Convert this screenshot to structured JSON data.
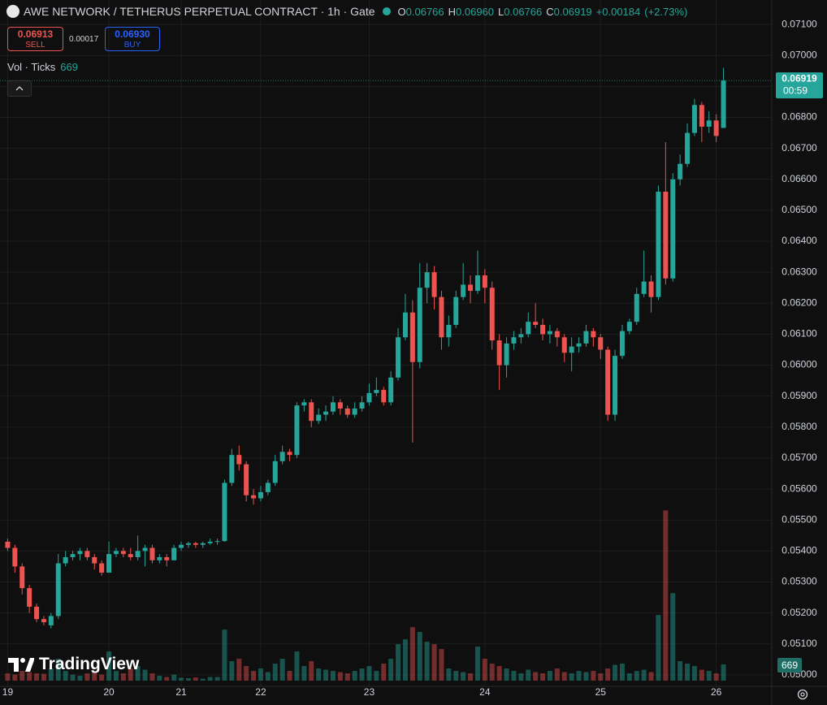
{
  "header": {
    "title": "AWE NETWORK / TETHERUS PERPETUAL CONTRACT · 1h · Gate",
    "o_label": "O",
    "open": "0.06766",
    "h_label": "H",
    "high": "0.06960",
    "l_label": "L",
    "low": "0.06766",
    "c_label": "C",
    "close": "0.06919",
    "change": "+0.00184",
    "change_pct": "(+2.73%)"
  },
  "trade": {
    "sell_price": "0.06913",
    "sell_label": "SELL",
    "spread": "0.00017",
    "buy_price": "0.06930",
    "buy_label": "BUY"
  },
  "indicator": {
    "label": "Vol · Ticks"
  },
  "countdown": "00:59",
  "branding": "TradingView",
  "chart_data": {
    "type": "candlestick",
    "categories": [
      "19",
      null,
      null,
      null,
      null,
      null,
      null,
      null,
      null,
      null,
      null,
      null,
      null,
      null,
      "20",
      null,
      null,
      null,
      null,
      null,
      null,
      null,
      null,
      null,
      "21",
      null,
      null,
      null,
      null,
      null,
      null,
      null,
      null,
      null,
      null,
      "22",
      null,
      null,
      null,
      null,
      null,
      null,
      null,
      null,
      null,
      null,
      null,
      null,
      null,
      null,
      "23",
      null,
      null,
      null,
      null,
      null,
      null,
      null,
      null,
      null,
      null,
      null,
      null,
      null,
      null,
      null,
      "24",
      null,
      null,
      null,
      null,
      null,
      null,
      null,
      null,
      null,
      null,
      null,
      null,
      null,
      null,
      null,
      "25",
      null,
      null,
      null,
      null,
      null,
      null,
      null,
      null,
      null,
      null,
      null,
      null,
      null,
      null,
      null,
      "26",
      null
    ],
    "ohlc": [
      [
        0.0543,
        0.0544,
        0.054,
        0.0541
      ],
      [
        0.0541,
        0.0542,
        0.0533,
        0.0535
      ],
      [
        0.0535,
        0.0536,
        0.0526,
        0.0528
      ],
      [
        0.0528,
        0.0529,
        0.052,
        0.0522
      ],
      [
        0.0522,
        0.0523,
        0.0517,
        0.0518
      ],
      [
        0.0518,
        0.0519,
        0.0516,
        0.0517
      ],
      [
        0.0516,
        0.052,
        0.0515,
        0.0519
      ],
      [
        0.0519,
        0.0539,
        0.0518,
        0.0536
      ],
      [
        0.0536,
        0.054,
        0.0535,
        0.0538
      ],
      [
        0.0538,
        0.054,
        0.0537,
        0.0539
      ],
      [
        0.0539,
        0.0541,
        0.0537,
        0.054
      ],
      [
        0.054,
        0.0541,
        0.0537,
        0.0538
      ],
      [
        0.0538,
        0.0539,
        0.0534,
        0.0536
      ],
      [
        0.0536,
        0.0537,
        0.0532,
        0.0533
      ],
      [
        0.0533,
        0.0543,
        0.0533,
        0.0539
      ],
      [
        0.0539,
        0.0541,
        0.0538,
        0.054
      ],
      [
        0.054,
        0.0541,
        0.0538,
        0.0539
      ],
      [
        0.0539,
        0.0541,
        0.0537,
        0.0538
      ],
      [
        0.0538,
        0.0545,
        0.0537,
        0.054
      ],
      [
        0.054,
        0.0542,
        0.0535,
        0.0541
      ],
      [
        0.0541,
        0.0542,
        0.0536,
        0.0537
      ],
      [
        0.0537,
        0.0539,
        0.0536,
        0.0538
      ],
      [
        0.0538,
        0.0539,
        0.0535,
        0.0537
      ],
      [
        0.0537,
        0.0542,
        0.0537,
        0.0541
      ],
      [
        0.0541,
        0.0543,
        0.054,
        0.0542
      ],
      [
        0.0542,
        0.0543,
        0.0541,
        0.05425
      ],
      [
        0.05425,
        0.0543,
        0.0541,
        0.0542
      ],
      [
        0.0542,
        0.0543,
        0.0541,
        0.05425
      ],
      [
        0.05425,
        0.0544,
        0.0542,
        0.0543
      ],
      [
        0.0543,
        0.0544,
        0.0542,
        0.05432
      ],
      [
        0.05432,
        0.0563,
        0.0543,
        0.0562
      ],
      [
        0.0562,
        0.0573,
        0.0561,
        0.0571
      ],
      [
        0.0571,
        0.0574,
        0.0566,
        0.0568
      ],
      [
        0.0568,
        0.0569,
        0.0556,
        0.0558
      ],
      [
        0.0558,
        0.056,
        0.0555,
        0.0557
      ],
      [
        0.0557,
        0.0561,
        0.0556,
        0.0559
      ],
      [
        0.0559,
        0.0563,
        0.0558,
        0.0562
      ],
      [
        0.0562,
        0.0571,
        0.0561,
        0.0569
      ],
      [
        0.0569,
        0.0574,
        0.0568,
        0.0572
      ],
      [
        0.0572,
        0.0573,
        0.0569,
        0.0571
      ],
      [
        0.0571,
        0.0588,
        0.057,
        0.0587
      ],
      [
        0.0587,
        0.0589,
        0.0585,
        0.0588
      ],
      [
        0.0588,
        0.0589,
        0.058,
        0.0582
      ],
      [
        0.0582,
        0.0586,
        0.0581,
        0.0584
      ],
      [
        0.0584,
        0.0587,
        0.0582,
        0.0585
      ],
      [
        0.0585,
        0.059,
        0.0584,
        0.0588
      ],
      [
        0.0588,
        0.0589,
        0.0584,
        0.0586
      ],
      [
        0.0586,
        0.0587,
        0.0583,
        0.0584
      ],
      [
        0.0584,
        0.0588,
        0.0583,
        0.0586
      ],
      [
        0.0586,
        0.059,
        0.0585,
        0.0588
      ],
      [
        0.0588,
        0.0594,
        0.0587,
        0.0591
      ],
      [
        0.0591,
        0.0596,
        0.059,
        0.0592
      ],
      [
        0.0592,
        0.0593,
        0.0587,
        0.0588
      ],
      [
        0.0588,
        0.0598,
        0.0587,
        0.0596
      ],
      [
        0.0596,
        0.0612,
        0.0595,
        0.0609
      ],
      [
        0.0609,
        0.0623,
        0.0608,
        0.0617
      ],
      [
        0.0617,
        0.0621,
        0.0575,
        0.0601
      ],
      [
        0.0601,
        0.0633,
        0.0599,
        0.0625
      ],
      [
        0.0625,
        0.0633,
        0.062,
        0.063
      ],
      [
        0.063,
        0.0632,
        0.0618,
        0.0622
      ],
      [
        0.0622,
        0.0624,
        0.0605,
        0.0609
      ],
      [
        0.0609,
        0.0616,
        0.0606,
        0.0613
      ],
      [
        0.0613,
        0.0624,
        0.0612,
        0.0622
      ],
      [
        0.0622,
        0.0633,
        0.0621,
        0.0626
      ],
      [
        0.0626,
        0.0629,
        0.062,
        0.0624
      ],
      [
        0.0624,
        0.0637,
        0.0623,
        0.0629
      ],
      [
        0.0629,
        0.0631,
        0.062,
        0.0625
      ],
      [
        0.0625,
        0.0627,
        0.0605,
        0.0608
      ],
      [
        0.0608,
        0.061,
        0.0592,
        0.06
      ],
      [
        0.06,
        0.0609,
        0.0596,
        0.0607
      ],
      [
        0.0607,
        0.0611,
        0.0605,
        0.0609
      ],
      [
        0.0609,
        0.0612,
        0.0607,
        0.061
      ],
      [
        0.061,
        0.0617,
        0.0609,
        0.0614
      ],
      [
        0.0614,
        0.062,
        0.0612,
        0.0613
      ],
      [
        0.0613,
        0.0615,
        0.0608,
        0.061
      ],
      [
        0.061,
        0.0613,
        0.0607,
        0.0611
      ],
      [
        0.0611,
        0.0612,
        0.0606,
        0.0609
      ],
      [
        0.0609,
        0.061,
        0.0601,
        0.0604
      ],
      [
        0.0604,
        0.0609,
        0.0598,
        0.0606
      ],
      [
        0.0606,
        0.0609,
        0.0604,
        0.0607
      ],
      [
        0.0607,
        0.0613,
        0.0606,
        0.0611
      ],
      [
        0.0611,
        0.0612,
        0.0606,
        0.0609
      ],
      [
        0.0609,
        0.061,
        0.0602,
        0.0605
      ],
      [
        0.0605,
        0.0606,
        0.0582,
        0.0584
      ],
      [
        0.0584,
        0.0605,
        0.0582,
        0.0603
      ],
      [
        0.0603,
        0.0613,
        0.0602,
        0.0611
      ],
      [
        0.0611,
        0.0615,
        0.061,
        0.0614
      ],
      [
        0.0614,
        0.0625,
        0.0613,
        0.0623
      ],
      [
        0.0623,
        0.0637,
        0.0622,
        0.0627
      ],
      [
        0.0627,
        0.0629,
        0.0617,
        0.0622
      ],
      [
        0.0622,
        0.0658,
        0.0621,
        0.0656
      ],
      [
        0.0656,
        0.0672,
        0.0626,
        0.0628
      ],
      [
        0.0628,
        0.0662,
        0.0627,
        0.066
      ],
      [
        0.066,
        0.0668,
        0.0658,
        0.0665
      ],
      [
        0.0665,
        0.0678,
        0.0664,
        0.0675
      ],
      [
        0.0675,
        0.0686,
        0.0674,
        0.0684
      ],
      [
        0.0684,
        0.0685,
        0.0672,
        0.0677
      ],
      [
        0.0677,
        0.0682,
        0.0675,
        0.0679
      ],
      [
        0.0679,
        0.0681,
        0.0672,
        0.0674
      ],
      [
        0.06766,
        0.0696,
        0.06766,
        0.06919
      ]
    ],
    "volume": [
      300,
      250,
      400,
      350,
      300,
      280,
      500,
      900,
      400,
      250,
      200,
      300,
      350,
      250,
      1200,
      400,
      300,
      500,
      600,
      450,
      300,
      200,
      150,
      250,
      120,
      100,
      130,
      80,
      150,
      150,
      2100,
      800,
      900,
      600,
      400,
      500,
      350,
      700,
      900,
      400,
      1200,
      600,
      800,
      500,
      450,
      400,
      350,
      300,
      400,
      500,
      600,
      400,
      700,
      900,
      1500,
      1700,
      2200,
      2000,
      1600,
      1500,
      1300,
      500,
      400,
      350,
      300,
      1400,
      900,
      700,
      600,
      500,
      400,
      300,
      450,
      350,
      300,
      400,
      500,
      350,
      300,
      400,
      350,
      400,
      300,
      500,
      650,
      700,
      300,
      400,
      450,
      350,
      2700,
      7000,
      3600,
      800,
      700,
      600,
      450,
      400,
      300,
      669
    ],
    "up_color": "#26a69a",
    "down_color": "#ef5350",
    "ylim": [
      0.04963,
      0.07179
    ],
    "yticks": [
      {
        "value": 0.05,
        "label": "0.05000"
      },
      {
        "value": 0.051,
        "label": "0.05100"
      },
      {
        "value": 0.052,
        "label": "0.05200"
      },
      {
        "value": 0.053,
        "label": "0.05300"
      },
      {
        "value": 0.054,
        "label": "0.05400"
      },
      {
        "value": 0.055,
        "label": "0.05500"
      },
      {
        "value": 0.056,
        "label": "0.05600"
      },
      {
        "value": 0.057,
        "label": "0.05700"
      },
      {
        "value": 0.058,
        "label": "0.05800"
      },
      {
        "value": 0.059,
        "label": "0.05900"
      },
      {
        "value": 0.06,
        "label": "0.06000"
      },
      {
        "value": 0.061,
        "label": "0.06100"
      },
      {
        "value": 0.062,
        "label": "0.06200"
      },
      {
        "value": 0.063,
        "label": "0.06300"
      },
      {
        "value": 0.064,
        "label": "0.06400"
      },
      {
        "value": 0.065,
        "label": "0.06500"
      },
      {
        "value": 0.066,
        "label": "0.06600"
      },
      {
        "value": 0.067,
        "label": "0.06700"
      },
      {
        "value": 0.068,
        "label": "0.06800"
      },
      {
        "value": 0.069,
        "label": "0.06900"
      },
      {
        "value": 0.07,
        "label": "0.07000"
      },
      {
        "value": 0.071,
        "label": "0.07100"
      }
    ],
    "y2lim": [
      0,
      28000
    ],
    "grid": true
  }
}
